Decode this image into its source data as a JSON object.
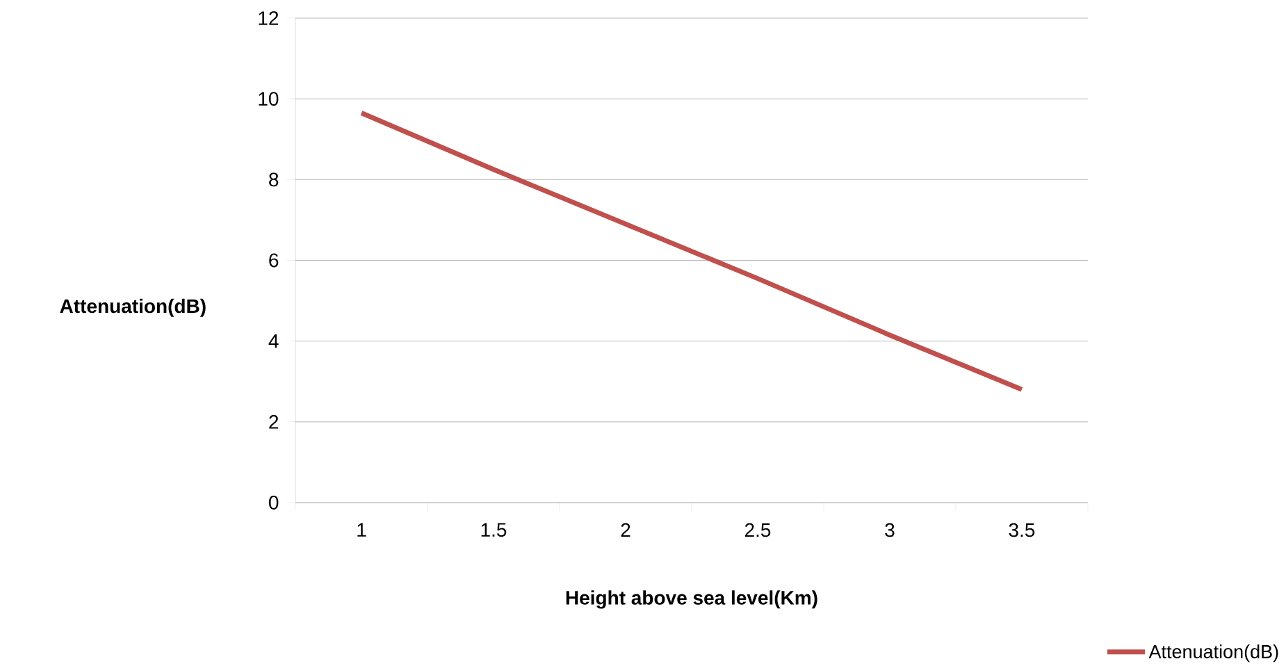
{
  "chart_data": {
    "type": "line",
    "xlabel": "Height above sea level(Km)",
    "ylabel": "Attenuation(dB)",
    "categories": [
      "1",
      "1.5",
      "2",
      "2.5",
      "3",
      "3.5"
    ],
    "series": [
      {
        "name": "Attenuation(dB)",
        "color": "#c0504d",
        "values": [
          9.65,
          8.25,
          6.9,
          5.55,
          4.15,
          2.8
        ]
      }
    ],
    "ylim": [
      0,
      12
    ],
    "yticks": [
      0,
      2,
      4,
      6,
      8,
      10,
      12
    ],
    "grid": "y",
    "legend": "bottom right"
  }
}
